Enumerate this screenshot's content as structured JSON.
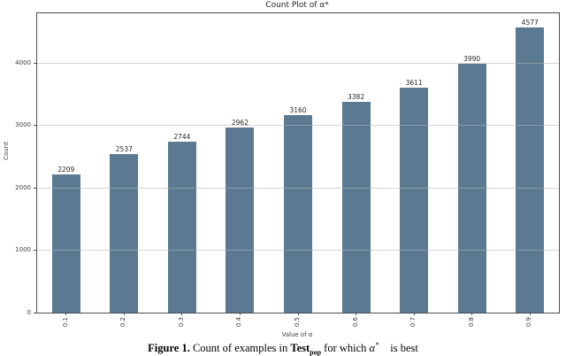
{
  "chart_data": {
    "type": "bar",
    "title": "Count Plot of α*",
    "xlabel": "Value of α",
    "ylabel": "Count",
    "categories": [
      "0.1",
      "0.2",
      "0.3",
      "0.4",
      "0.5",
      "0.6",
      "0.7",
      "0.8",
      "0.9"
    ],
    "values": [
      2209,
      2537,
      2744,
      2962,
      3160,
      3382,
      3611,
      3990,
      4577
    ],
    "ylim": [
      0,
      4800
    ],
    "yticks": [
      0,
      1000,
      2000,
      3000,
      4000
    ],
    "grid": "horizontal",
    "legend": "none",
    "bar_color": "#5b7a92",
    "xtick_rotation": 90,
    "value_labels_shown": true
  },
  "caption": {
    "figure_label": "Figure 1.",
    "text_before_testset": "Count of examples in",
    "testset_base": "Test",
    "testset_subscript": "pop",
    "text_after_testset": "for which",
    "alpha_symbol": "α",
    "alpha_superscript": "*",
    "text_end": "is best"
  },
  "colors": {
    "bar": "#5b7a92",
    "gridline": "#d9d9d9",
    "spine": "#4c4c4c",
    "text": "#3d3d3d",
    "background": "#ffffff"
  }
}
